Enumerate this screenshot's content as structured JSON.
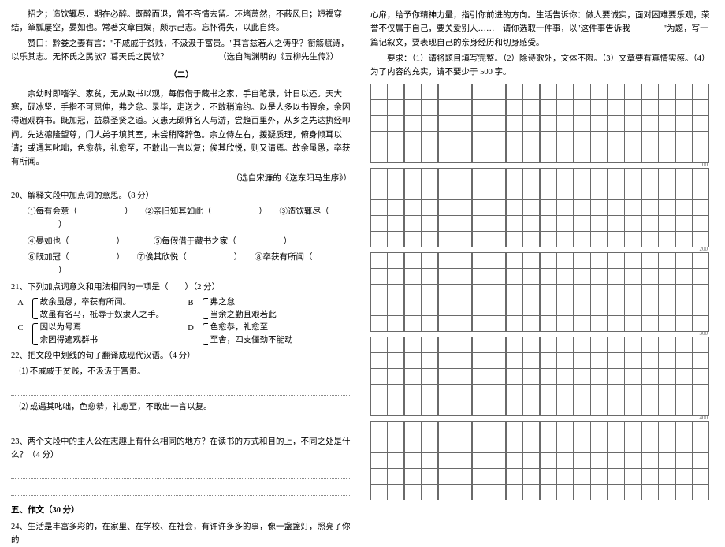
{
  "left": {
    "p1": "招之；造饮辄尽，期在必醉。既醉而退，曾不吝情去留。环堵萧然，不蔽风日；短褐穿结，箪瓢屡空，晏如也。常著文章自娱，颇示己志。忘怀得失，以此自终。",
    "p2": "赞曰：黔娄之妻有言：\"不戚戚于贫贱，不汲汲于富贵。\"其言兹若人之俦乎？衔觞赋诗，以乐其志。无怀氏之民欤？葛天氏之民欤？",
    "src1": "（选自陶渊明的《五柳先生传》）",
    "sec2_title": "（二）",
    "p3": "余幼时即嗜学。家贫，无从致书以观，每假借于藏书之家，手自笔录，计日以还。天大寒，砚冰坚，手指不可屈伸，弗之怠。录毕，走送之，不敢稍逾约。以是人多以书假余，余因得遍观群书。既加冠，益慕圣贤之道。又患无硕师名人与游，尝趋百里外，从乡之先达执经叩问。先达德隆望尊，门人弟子填其室，未尝稍降辞色。余立侍左右，援疑质理，俯身倾耳以请；或遇其叱咄，色愈恭，礼愈至，不敢出一言以复；俟其欣悦，则又请焉。故余虽愚，卒获有所闻。",
    "src2": "（选自宋濂的《送东阳马生序》）",
    "q20": "20、解释文段中加点词的意思。（8 分）",
    "q20_1": "①每有会意（",
    "q20_1b": "）　　②亲旧知其如此（",
    "q20_1c": "）　　③造饮辄尽（",
    "q20_1d": "）",
    "q20_2": "④晏如也（",
    "q20_2b": "）　　　　⑤每假借于藏书之家（",
    "q20_2c": "）",
    "q20_3": "⑥既加冠（",
    "q20_3b": "）　　⑦俟其欣悦（",
    "q20_3c": "）　　⑧卒获有所闻（",
    "q20_3d": "）",
    "q21": "21、下列加点词意义和用法相同的一项是（　　）（2 分）",
    "q21_A1": "故余虽愚，卒获有所闻。",
    "q21_A2": "故虽有名马，祗辱于奴隶人之手。",
    "q21_B1": "弗之怠",
    "q21_B2": "当余之勤且艰若此",
    "q21_C1": "因以为号焉",
    "q21_C2": "余因得遍观群书",
    "q21_D1": "色愈恭，礼愈至",
    "q21_D2": "至舍，四支僵劲不能动",
    "q22": "22、把文段中划线的句子翻译成现代汉语。（4 分）",
    "q22_1": "⑴ 不戚戚于贫贱，不汲汲于富贵。",
    "q22_2": "⑵ 或遇其叱咄，色愈恭，礼愈至，不敢出一言以复。",
    "q23": "23、两个文段中的主人公在志趣上有什么相同的地方？在读书的方式和目的上，不同之处是什么？（4 分）",
    "sec5": "五、作文（30 分）",
    "q24": "24、生活是丰富多彩的，在家里、在学校、在社会，有许许多多的事，像一盏盏灯，照亮了你的"
  },
  "right": {
    "r1": "心扉，给予你精神力量，指引你前进的方向。生活告诉你：做人要诚实，面对困难要乐观，荣誉不仅属于自己，要关爱别人……　请你选取一件事，以\"这件事告诉我",
    "r1u": "　　　　",
    "r1b": "\"为题，写一篇记叙文，要表现自己的亲身经历和切身感受。",
    "r2": "要求：（1）请将题目填写完整。（2）除诗歌外，文体不限。（3）文章要有真情实感。（4）为了内容的充实，请不要少于 500 字。",
    "marks": [
      "100",
      "200",
      "300",
      "400"
    ]
  },
  "style": {
    "rows_per_block": 5,
    "cols": 20,
    "blocks": 5
  }
}
